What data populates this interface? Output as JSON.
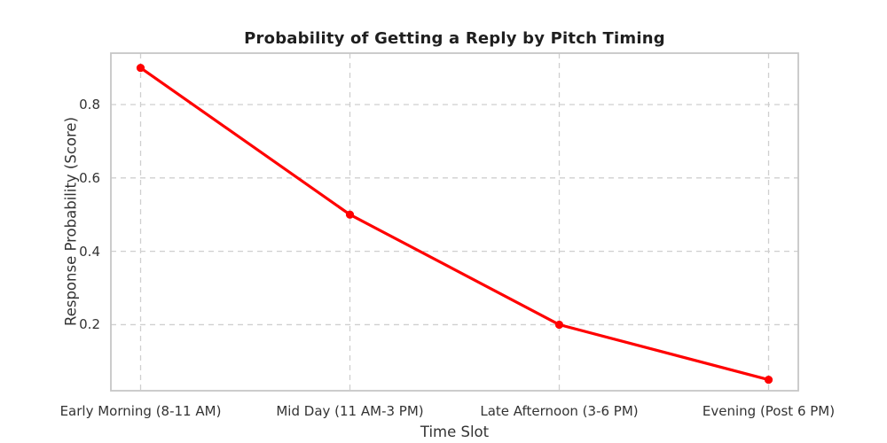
{
  "chart_data": {
    "type": "line",
    "title": "Probability of Getting a Reply by Pitch Timing",
    "xlabel": "Time Slot",
    "ylabel": "Response Probability (Score)",
    "categories": [
      "Early Morning (8-11 AM)",
      "Mid Day (11 AM-3 PM)",
      "Late Afternoon (3-6 PM)",
      "Evening (Post 6 PM)"
    ],
    "series": [
      {
        "name": "Response Probability",
        "values": [
          0.9,
          0.5,
          0.2,
          0.05
        ]
      }
    ],
    "yticks": [
      0.2,
      0.4,
      0.6,
      0.8
    ],
    "ytick_labels": [
      "0.2",
      "0.4",
      "0.6",
      "0.8"
    ],
    "ylim": [
      0.02,
      0.94
    ],
    "grid": true,
    "grid_style": "dashed",
    "legend_position": "none",
    "colors": {
      "line": "#ff0000",
      "marker": "#ff0000",
      "grid": "#cfcfcf",
      "spine": "#c6c6c6",
      "text": "#333333",
      "title_text": "#1f1f1f",
      "background": "#ffffff"
    },
    "marker": "circle"
  }
}
